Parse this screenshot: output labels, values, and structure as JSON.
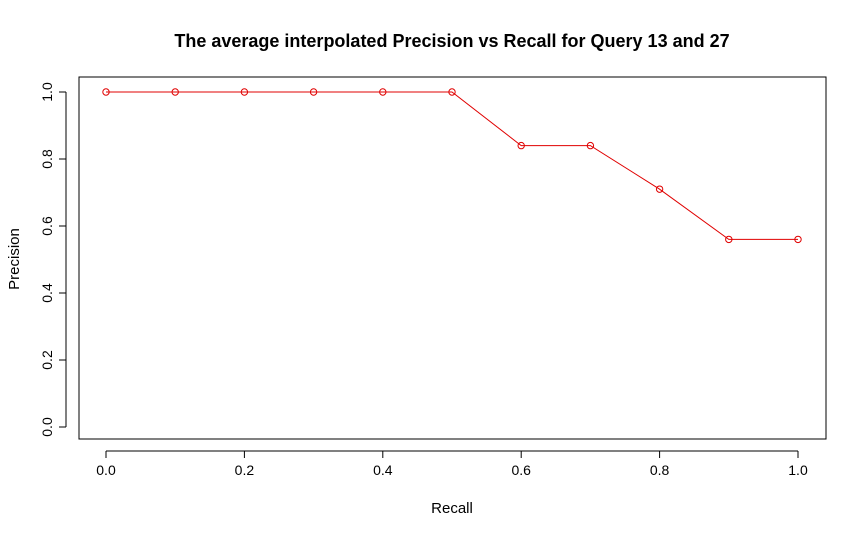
{
  "chart_data": {
    "type": "line",
    "title": "The average interpolated Precision vs Recall for Query 13 and 27",
    "xlabel": "Recall",
    "ylabel": "Precision",
    "xlim": [
      0.0,
      1.0
    ],
    "ylim": [
      0.0,
      1.0
    ],
    "x_ticks": [
      "0.0",
      "0.2",
      "0.4",
      "0.6",
      "0.8",
      "1.0"
    ],
    "y_ticks": [
      "0.0",
      "0.2",
      "0.4",
      "0.6",
      "0.8",
      "1.0"
    ],
    "grid": false,
    "legend": "none",
    "series": [
      {
        "x": [
          0.0,
          0.1,
          0.2,
          0.3,
          0.4,
          0.5,
          0.6,
          0.7,
          0.8,
          0.9,
          1.0
        ],
        "values": [
          1.0,
          1.0,
          1.0,
          1.0,
          1.0,
          1.0,
          0.84,
          0.84,
          0.71,
          0.56,
          0.56
        ],
        "color": "#e00000",
        "marker": "open-circle"
      }
    ]
  }
}
